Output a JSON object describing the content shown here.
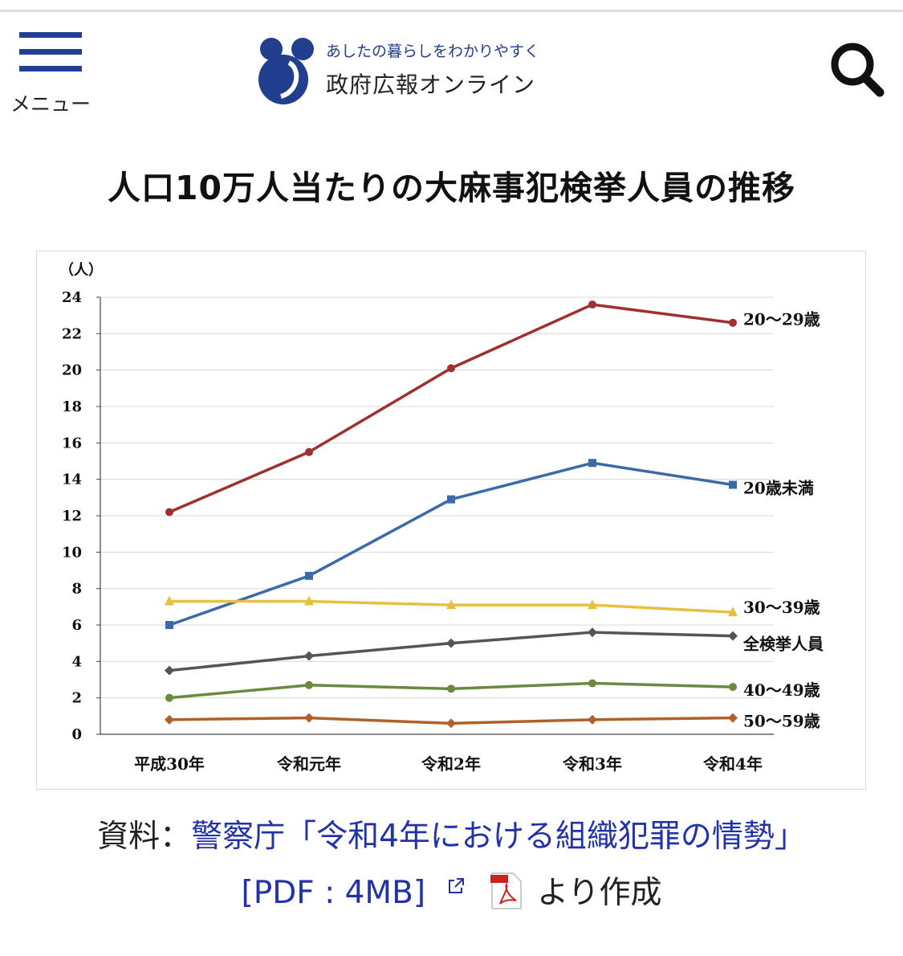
{
  "header": {
    "menu_label": "メニュー",
    "logo_tagline": "あしたの暮らしをわかりやすく",
    "logo_name": "政府広報オンライン",
    "accent_color": "#213e8f"
  },
  "page_title": "人口10万人当たりの大麻事犯検挙人員の推移",
  "chart_data": {
    "type": "line",
    "title": "",
    "xlabel": "",
    "ylabel": "（人）",
    "ylim": [
      0,
      24
    ],
    "yticks": [
      0,
      2,
      4,
      6,
      8,
      10,
      12,
      14,
      16,
      18,
      20,
      22,
      24
    ],
    "grid": true,
    "legend": "labels at line ends",
    "categories": [
      "平成30年",
      "令和元年",
      "令和2年",
      "令和3年",
      "令和4年"
    ],
    "series": [
      {
        "name": "20～29歳",
        "values": [
          12.2,
          15.5,
          20.1,
          23.6,
          22.6
        ],
        "color": "#a03030",
        "marker": "circle"
      },
      {
        "name": "20歳未満",
        "values": [
          6.0,
          8.7,
          12.9,
          14.9,
          13.7
        ],
        "color": "#3a6aaa",
        "marker": "square"
      },
      {
        "name": "30～39歳",
        "values": [
          7.3,
          7.3,
          7.1,
          7.1,
          6.7
        ],
        "color": "#e8c040",
        "marker": "triangle"
      },
      {
        "name": "全検挙人員",
        "values": [
          3.5,
          4.3,
          5.0,
          5.6,
          5.4
        ],
        "color": "#555555",
        "marker": "diamond"
      },
      {
        "name": "40～49歳",
        "values": [
          2.0,
          2.7,
          2.5,
          2.8,
          2.6
        ],
        "color": "#6a8a40",
        "marker": "circle"
      },
      {
        "name": "50～59歳",
        "values": [
          0.8,
          0.9,
          0.6,
          0.8,
          0.9
        ],
        "color": "#b0602a",
        "marker": "diamond"
      }
    ]
  },
  "source": {
    "prefix": "資料：",
    "link_text": "警察庁「令和4年における組織犯罪の情勢」",
    "pdf_text": "[PDF : 4MB]",
    "suffix": "より作成"
  }
}
